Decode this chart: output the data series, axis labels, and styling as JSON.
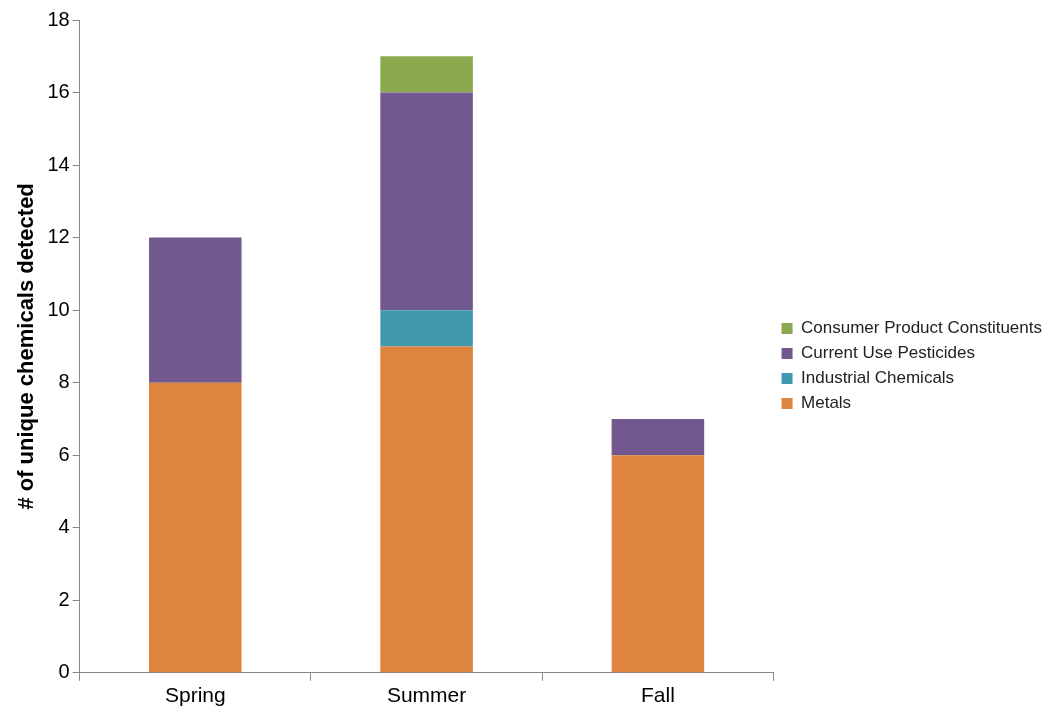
{
  "chart_data": {
    "type": "bar",
    "ylabel": "# of unique chemicals detected",
    "categories": [
      "Spring",
      "Summer",
      "Fall"
    ],
    "stacked": true,
    "ylim": [
      0,
      18
    ],
    "yticks": [
      0,
      2,
      4,
      6,
      8,
      10,
      12,
      14,
      16,
      18
    ],
    "grid": false,
    "legend": "right",
    "series": [
      {
        "name": "Metals",
        "color": "#dd843f",
        "values": [
          8,
          9,
          6
        ]
      },
      {
        "name": "Industrial Chemicals",
        "color": "#4198af",
        "values": [
          0,
          1,
          0
        ]
      },
      {
        "name": "Current Use Pesticides",
        "color": "#71588f",
        "values": [
          4,
          6,
          1
        ]
      },
      {
        "name": "Consumer Product Constituents",
        "color": "#8ba94f",
        "values": [
          0,
          1,
          0
        ]
      }
    ]
  }
}
